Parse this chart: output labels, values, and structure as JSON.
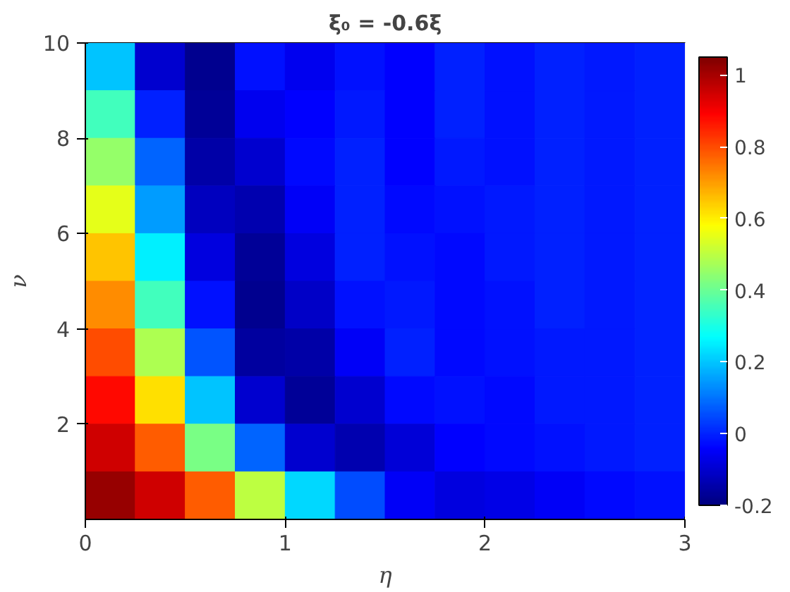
{
  "chart_data": {
    "type": "heatmap",
    "title": "ξ₀ = -0.6ξ",
    "xlabel": "η",
    "ylabel": "ν",
    "x": [
      0.125,
      0.375,
      0.625,
      0.875,
      1.125,
      1.375,
      1.625,
      1.875,
      2.125,
      2.375,
      2.625,
      2.875
    ],
    "y": [
      9.5,
      8.5,
      7.5,
      6.5,
      5.5,
      4.5,
      3.5,
      2.5,
      1.5,
      0.5
    ],
    "xlim": [
      0,
      3
    ],
    "ylim": [
      0,
      10
    ],
    "xticks": [
      0,
      1,
      2,
      3
    ],
    "yticks": [
      2,
      4,
      6,
      8,
      10
    ],
    "clim": [
      -0.2,
      1.05
    ],
    "cticks": [
      -0.2,
      0,
      0.2,
      0.4,
      0.6,
      0.8,
      1
    ],
    "cells": [
      [
        0.2,
        -0.1,
        -0.18,
        -0.02,
        -0.06,
        -0.02,
        -0.04,
        0,
        -0.02,
        0,
        -0.01,
        0
      ],
      [
        0.35,
        0,
        -0.17,
        -0.06,
        -0.04,
        -0.01,
        -0.04,
        0,
        -0.02,
        0,
        -0.01,
        0
      ],
      [
        0.45,
        0.08,
        -0.15,
        -0.1,
        -0.03,
        0,
        -0.04,
        -0.01,
        -0.02,
        0,
        -0.01,
        0
      ],
      [
        0.55,
        0.15,
        -0.12,
        -0.14,
        -0.05,
        0,
        -0.03,
        -0.02,
        -0.01,
        0,
        -0.01,
        0
      ],
      [
        0.65,
        0.25,
        -0.08,
        -0.17,
        -0.08,
        0,
        -0.02,
        -0.03,
        -0.01,
        0,
        -0.01,
        0
      ],
      [
        0.72,
        0.35,
        -0.02,
        -0.18,
        -0.11,
        -0.02,
        -0.01,
        -0.03,
        -0.02,
        0,
        -0.01,
        0
      ],
      [
        0.8,
        0.48,
        0.06,
        -0.16,
        -0.15,
        -0.05,
        0,
        -0.03,
        -0.02,
        -0.01,
        -0.01,
        0
      ],
      [
        0.88,
        0.62,
        0.2,
        -0.1,
        -0.17,
        -0.1,
        -0.03,
        -0.02,
        -0.03,
        -0.01,
        -0.01,
        0
      ],
      [
        0.95,
        0.78,
        0.42,
        0.08,
        -0.1,
        -0.14,
        -0.09,
        -0.04,
        -0.03,
        -0.02,
        -0.01,
        0
      ],
      [
        1.02,
        0.95,
        0.78,
        0.5,
        0.22,
        0.05,
        -0.05,
        -0.08,
        -0.07,
        -0.05,
        -0.03,
        -0.02
      ]
    ]
  }
}
